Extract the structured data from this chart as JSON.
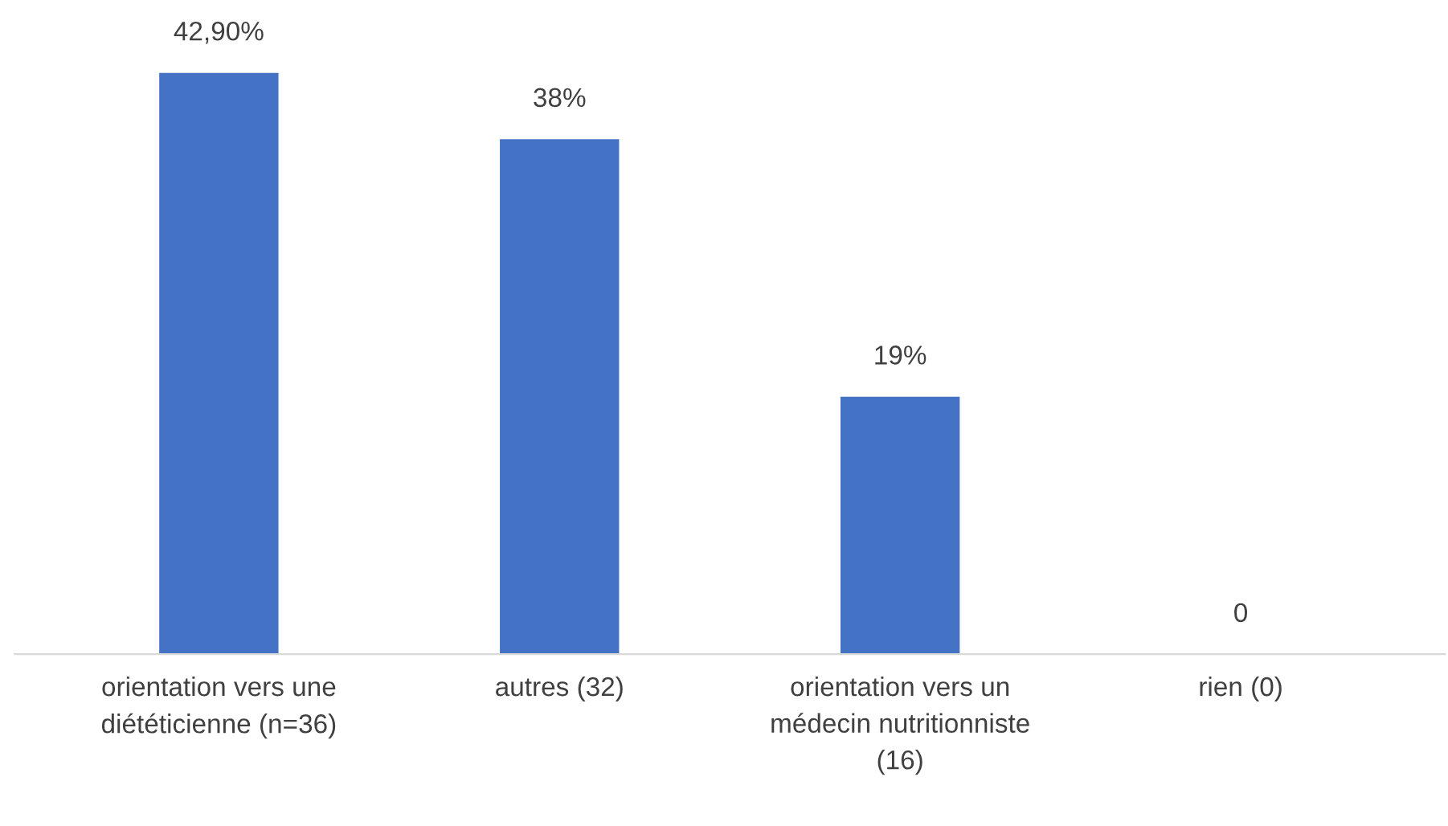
{
  "chart_data": {
    "type": "bar",
    "categories": [
      "orientation vers une\ndiététicienne (n=36)",
      "autres (32)",
      "orientation vers un\nmédecin nutritionniste\n(16)",
      "rien (0)"
    ],
    "values": [
      42.9,
      38,
      19,
      0
    ],
    "value_labels": [
      "42,90%",
      "38%",
      "19%",
      "0"
    ],
    "color": "#4472c4",
    "grid": false,
    "legend": false
  }
}
